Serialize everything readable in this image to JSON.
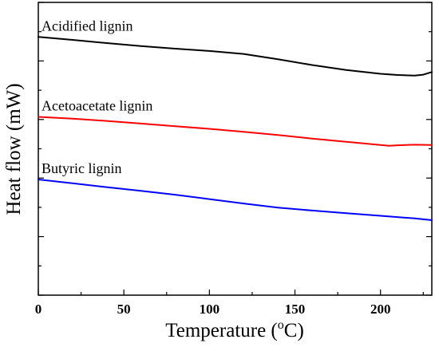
{
  "chart_data": {
    "type": "line",
    "title": "",
    "xlabel": {
      "main": "Temperature (",
      "sup": "o",
      "unit": "C)"
    },
    "ylabel": "Heat flow (mW)",
    "xlim": [
      0,
      230
    ],
    "ylim": [
      0,
      10
    ],
    "xticks": [
      "0",
      "50",
      "100",
      "150",
      "200"
    ],
    "yticks_labeled": false,
    "grid": false,
    "legend": "none",
    "series": [
      {
        "name": "Acidified lignin",
        "color": "#000000",
        "x": [
          0,
          20,
          40,
          60,
          80,
          100,
          120,
          140,
          160,
          180,
          200,
          210,
          220,
          225,
          230
        ],
        "y": [
          8.82,
          8.72,
          8.61,
          8.51,
          8.42,
          8.34,
          8.24,
          8.06,
          7.86,
          7.69,
          7.56,
          7.52,
          7.5,
          7.53,
          7.62
        ]
      },
      {
        "name": "Acetoacetate lignin",
        "color": "#ff0000",
        "x": [
          0,
          20,
          40,
          60,
          80,
          100,
          120,
          140,
          160,
          180,
          200,
          205,
          210,
          220,
          230
        ],
        "y": [
          6.09,
          6.03,
          5.95,
          5.86,
          5.77,
          5.68,
          5.58,
          5.47,
          5.35,
          5.24,
          5.13,
          5.1,
          5.12,
          5.14,
          5.13
        ]
      },
      {
        "name": "Butyric lignin",
        "color": "#0000ff",
        "x": [
          0,
          20,
          40,
          60,
          80,
          100,
          120,
          140,
          160,
          180,
          200,
          220,
          230
        ],
        "y": [
          3.95,
          3.82,
          3.69,
          3.56,
          3.43,
          3.28,
          3.13,
          2.99,
          2.89,
          2.8,
          2.71,
          2.62,
          2.56
        ]
      }
    ]
  }
}
